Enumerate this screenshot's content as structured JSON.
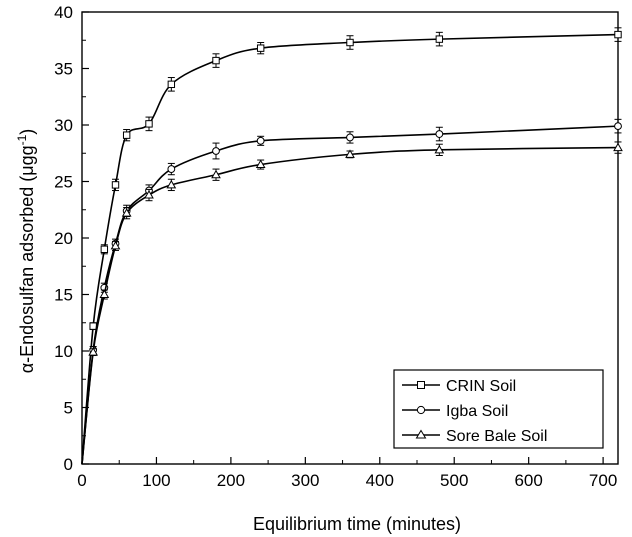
{
  "chart_data": {
    "type": "line",
    "xlabel": "Equilibrium time (minutes)",
    "ylabel_main": "α-Endosulfan adsorbed (μgg",
    "ylabel_sup": "-1",
    "ylabel_close": ")",
    "xlim": [
      0,
      720
    ],
    "ylim": [
      0,
      40
    ],
    "x_ticks": [
      "0",
      "100",
      "200",
      "300",
      "400",
      "500",
      "600",
      "700"
    ],
    "y_ticks": [
      "0",
      "5",
      "10",
      "15",
      "20",
      "25",
      "30",
      "35",
      "40"
    ],
    "grid": false,
    "legend_position": "bottom-right",
    "series": [
      {
        "name": "CRIN Soil",
        "marker": "square",
        "x": [
          0,
          15,
          30,
          45,
          60,
          90,
          120,
          180,
          240,
          360,
          480,
          720
        ],
        "y": [
          0,
          12.2,
          19.0,
          24.7,
          29.1,
          30.1,
          33.6,
          35.7,
          36.8,
          37.3,
          37.6,
          38.0
        ],
        "error": [
          0,
          0.3,
          0.4,
          0.5,
          0.5,
          0.6,
          0.6,
          0.6,
          0.5,
          0.6,
          0.6,
          0.6
        ]
      },
      {
        "name": "Igba Soil",
        "marker": "circle",
        "x": [
          0,
          15,
          30,
          45,
          60,
          90,
          120,
          180,
          240,
          360,
          480,
          720
        ],
        "y": [
          0,
          10.1,
          15.6,
          19.5,
          22.4,
          24.2,
          26.1,
          27.7,
          28.6,
          28.9,
          29.2,
          29.9
        ],
        "error": [
          0,
          0.3,
          0.4,
          0.4,
          0.5,
          0.5,
          0.5,
          0.7,
          0.4,
          0.5,
          0.6,
          0.6
        ]
      },
      {
        "name": "Sore Bale Soil",
        "marker": "triangle",
        "x": [
          0,
          15,
          30,
          45,
          60,
          90,
          120,
          180,
          240,
          360,
          480,
          720
        ],
        "y": [
          0,
          9.9,
          15.0,
          19.3,
          22.2,
          23.8,
          24.7,
          25.6,
          26.5,
          27.4,
          27.8,
          28.0
        ],
        "error": [
          0,
          0.3,
          0.4,
          0.4,
          0.5,
          0.5,
          0.5,
          0.5,
          0.4,
          0.3,
          0.5,
          0.5
        ]
      }
    ]
  }
}
